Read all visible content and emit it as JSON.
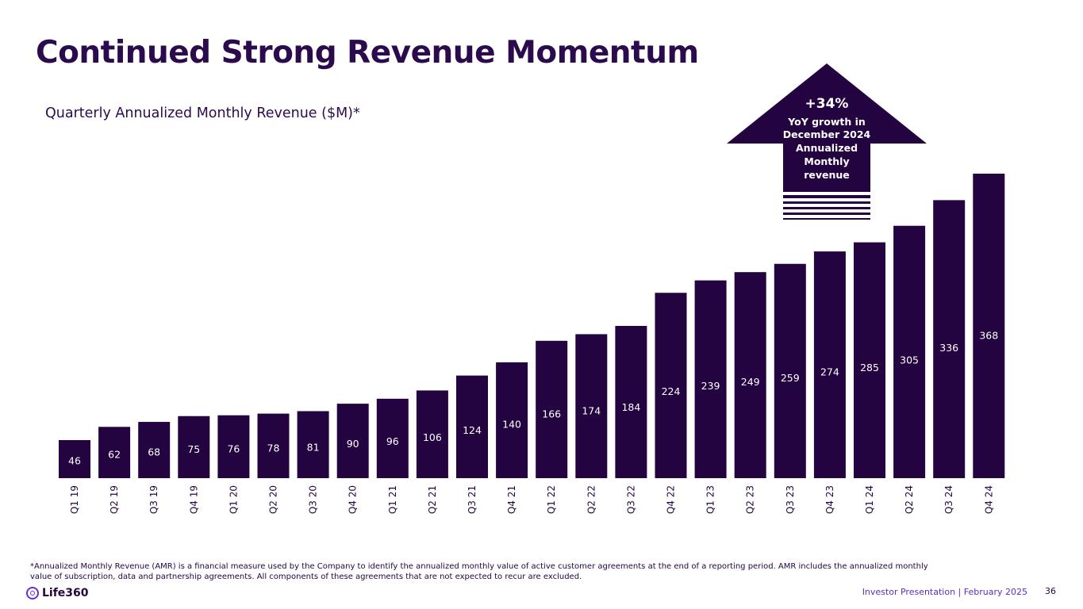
{
  "title": "Continued Strong Revenue Momentum",
  "subtitle": "Quarterly Annualized Monthly Revenue ($M)*",
  "chart_data": {
    "type": "bar",
    "title": "Quarterly Annualized Monthly Revenue ($M)*",
    "xlabel": "",
    "ylabel": "",
    "ylim": [
      0,
      370
    ],
    "grid": false,
    "categories": [
      "Q1 19",
      "Q2 19",
      "Q3 19",
      "Q4 19",
      "Q1 20",
      "Q2 20",
      "Q3 20",
      "Q4 20",
      "Q1 21",
      "Q2 21",
      "Q3 21",
      "Q4 21",
      "Q1 22",
      "Q2 22",
      "Q3 22",
      "Q4 22",
      "Q1 23",
      "Q2 23",
      "Q3 23",
      "Q4 23",
      "Q1 24",
      "Q2 24",
      "Q3 24",
      "Q4 24"
    ],
    "values": [
      46,
      62,
      68,
      75,
      76,
      78,
      81,
      90,
      96,
      106,
      124,
      140,
      166,
      174,
      184,
      224,
      239,
      249,
      259,
      274,
      285,
      305,
      336,
      368
    ]
  },
  "callout": {
    "percent": "+34%",
    "lines": [
      "YoY growth in",
      "December 2024",
      "Annualized",
      "Monthly",
      "revenue"
    ]
  },
  "footnote": "*Annualized Monthly Revenue (AMR) is a financial measure used by the Company to identify the annualized monthly value of active customer agreements at the end of a reporting period. AMR includes the annualized monthly value of subscription, data and partnership agreements. All components of these agreements that are not expected to recur are excluded.",
  "logo_text": "Life360",
  "footer": {
    "label": "Investor Presentation  | February 2025",
    "page_number": "36"
  },
  "colors": {
    "bar": "#240440",
    "accent": "#5a2fc0"
  }
}
